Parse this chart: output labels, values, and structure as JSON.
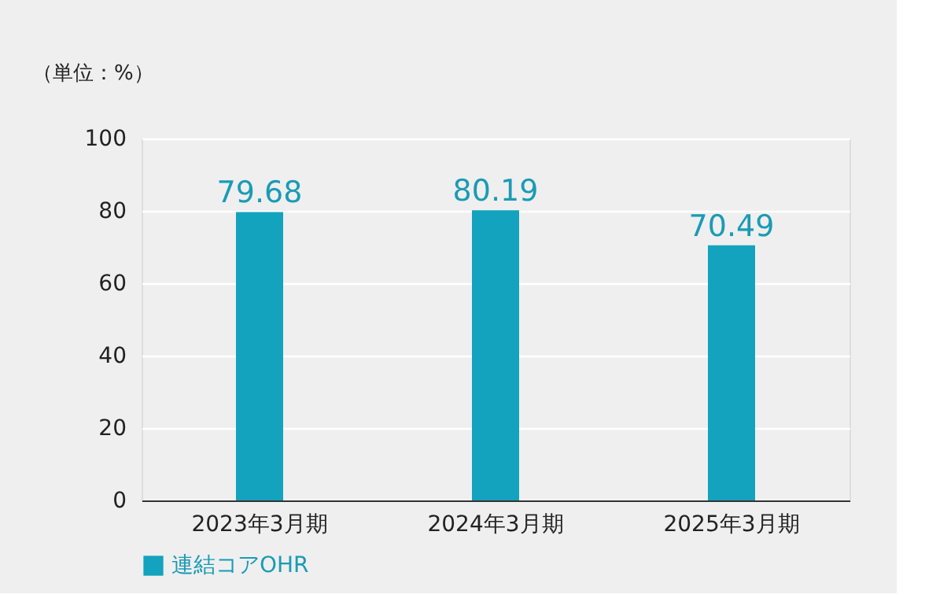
{
  "chart_data": {
    "type": "bar",
    "ylabel": "（単位：%）",
    "categories": [
      "2023年3月期",
      "2024年3月期",
      "2025年3月期"
    ],
    "series": [
      {
        "name": "連結コアOHR",
        "color": "#13a3be",
        "values": [
          79.68,
          80.19,
          70.49
        ]
      }
    ],
    "ylim": [
      0,
      100
    ],
    "yticks": [
      0,
      20,
      40,
      60,
      80,
      100
    ],
    "grid": "y",
    "legend": "bottom left",
    "data_labels": true
  }
}
